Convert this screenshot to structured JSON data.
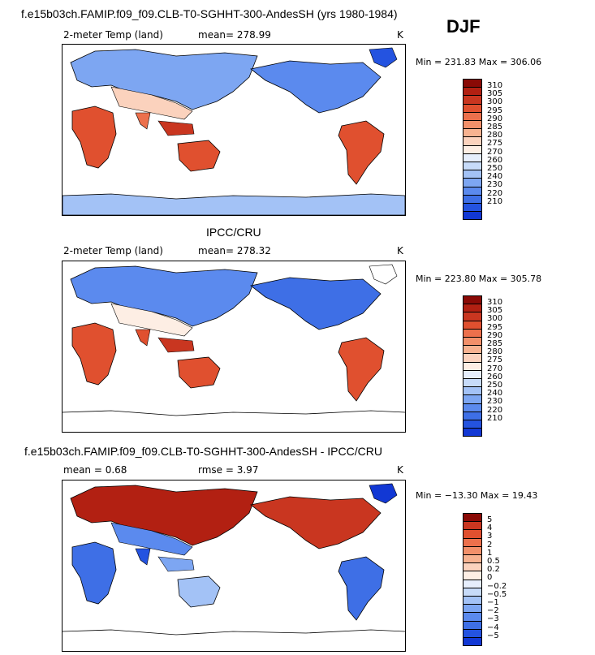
{
  "header": {
    "title": "f.e15b03ch.FAMIP.f09_f09.CLB-T0-SGHHT-300-AndesSH (yrs 1980-1984)",
    "season": "DJF"
  },
  "panels": [
    {
      "variable": "2-meter Temp (land)",
      "stat_text": "mean= 278.99",
      "units": "K",
      "minmax": "Min = 231.83 Max = 306.06"
    },
    {
      "subtitle": "IPCC/CRU",
      "variable": "2-meter Temp (land)",
      "stat_text": "mean= 278.32",
      "units": "K",
      "minmax": "Min = 223.80 Max = 305.78"
    },
    {
      "subtitle": "f.e15b03ch.FAMIP.f09_f09.CLB-T0-SGHHT-300-AndesSH - IPCC/CRU",
      "stat_text": "mean =   0.68",
      "rmse_text": "rmse =   3.97",
      "units": "K",
      "minmax": "Min = −13.30 Max =  19.43"
    }
  ],
  "colors": {
    "temp_scale": [
      "#08006e",
      "#0a1fb8",
      "#1238d4",
      "#2453e0",
      "#3e6fe6",
      "#5b8aee",
      "#7da6f2",
      "#a3c2f6",
      "#c7dbf9",
      "#e6eefc",
      "#fdeee4",
      "#fbd2bd",
      "#f7b290",
      "#f2906a",
      "#ec704c",
      "#e0502f",
      "#c93620",
      "#b22012",
      "#8a0a06"
    ],
    "diff_scale": [
      "#08006e",
      "#0a1fb8",
      "#1238d4",
      "#2453e0",
      "#3e6fe6",
      "#5b8aee",
      "#7da6f2",
      "#a3c2f6",
      "#c7dbf9",
      "#e6eefc",
      "#fdeee4",
      "#fbd2bd",
      "#f7b290",
      "#f2906a",
      "#ec704c",
      "#e0502f",
      "#c93620",
      "#8a0a06"
    ]
  },
  "chart_data": [
    {
      "type": "heatmap",
      "title": "f.e15b03ch.FAMIP.f09_f09.CLB-T0-SGHHT-300-AndesSH (yrs 1980-1984)",
      "variable": "2-meter Temp (land)",
      "season": "DJF",
      "mean": 278.99,
      "min": 231.83,
      "max": 306.06,
      "units": "K",
      "colorbar_levels": [
        "210",
        "220",
        "230",
        "240",
        "250",
        "260",
        "270",
        "275",
        "280",
        "285",
        "290",
        "295",
        "300",
        "305",
        "310"
      ]
    },
    {
      "type": "heatmap",
      "title": "IPCC/CRU",
      "variable": "2-meter Temp (land)",
      "mean": 278.32,
      "min": 223.8,
      "max": 305.78,
      "units": "K",
      "colorbar_levels": [
        "210",
        "220",
        "230",
        "240",
        "250",
        "260",
        "270",
        "275",
        "280",
        "285",
        "290",
        "295",
        "300",
        "305",
        "310"
      ]
    },
    {
      "type": "heatmap",
      "title": "f.e15b03ch.FAMIP.f09_f09.CLB-T0-SGHHT-300-AndesSH - IPCC/CRU",
      "mean": 0.68,
      "rmse": 3.97,
      "min": -13.3,
      "max": 19.43,
      "units": "K",
      "colorbar_levels": [
        "−5",
        "−4",
        "−3",
        "−2",
        "−1",
        "−0.5",
        "−0.2",
        "0",
        "0.2",
        "0.5",
        "1",
        "2",
        "3",
        "4",
        "5"
      ]
    }
  ]
}
